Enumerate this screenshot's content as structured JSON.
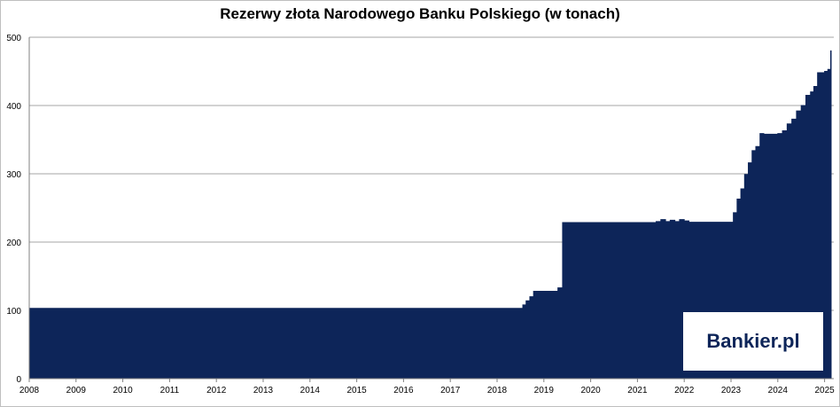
{
  "chart_data": {
    "type": "area",
    "title": "Rezerwy złota Narodowego Banku Polskiego (w tonach)",
    "xlabel": "",
    "ylabel": "",
    "ylim": [
      0,
      500
    ],
    "xlim": [
      2008,
      2025.2
    ],
    "grid": true,
    "legend": "none",
    "y_ticks": [
      "0",
      "100",
      "200",
      "300",
      "400",
      "500"
    ],
    "x_ticks": [
      "2008",
      "2009",
      "2010",
      "2011",
      "2012",
      "2013",
      "2014",
      "2015",
      "2016",
      "2017",
      "2018",
      "2019",
      "2020",
      "2021",
      "2022",
      "2023",
      "2024",
      "2025"
    ],
    "color": "#0d2559",
    "series": [
      {
        "x": [
          2008.0,
          2018.5,
          2018.55,
          2018.62,
          2018.7,
          2018.78,
          2019.2,
          2019.3,
          2019.4,
          2021.3,
          2021.4,
          2021.5,
          2021.6,
          2021.7,
          2021.8,
          2021.9,
          2022.0,
          2022.1,
          2022.3,
          2022.9,
          2023.05,
          2023.13,
          2023.21,
          2023.29,
          2023.37,
          2023.45,
          2023.53,
          2023.62,
          2023.7,
          2023.85,
          2024.0,
          2024.1,
          2024.2,
          2024.3,
          2024.4,
          2024.5,
          2024.6,
          2024.7,
          2024.77,
          2024.85,
          2024.93,
          2025.0,
          2025.07,
          2025.13
        ],
        "values": [
          103.0,
          103.0,
          108.0,
          114.0,
          120.0,
          128.0,
          128.0,
          133.0,
          228.6,
          228.6,
          230.0,
          233.0,
          230.0,
          232.0,
          230.0,
          233.0,
          231.0,
          229.0,
          229.0,
          229.0,
          243.0,
          263.0,
          278.0,
          299.0,
          316.0,
          334.0,
          340.0,
          359.0,
          358.0,
          358.0,
          359.0,
          363.0,
          373.0,
          380.0,
          392.0,
          400.0,
          415.0,
          420.0,
          428.0,
          448.0,
          448.0,
          450.0,
          453.0,
          480.0
        ]
      }
    ]
  },
  "logo": {
    "text": "Bankier.pl"
  }
}
